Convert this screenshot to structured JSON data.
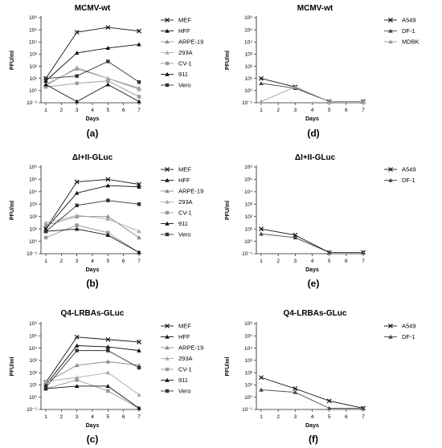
{
  "chart_data": [
    {
      "type": "line",
      "panel_label": "(a)",
      "title": "MCMV-wt",
      "xlabel": "Days",
      "ylabel": "PFU/ml",
      "x_ticks": [
        "1",
        "2",
        "3",
        "4",
        "5",
        "6",
        "7"
      ],
      "y_ticks": [
        "10⁻¹",
        "10⁰",
        "10¹",
        "10²",
        "10³",
        "10⁴",
        "10⁵",
        "10⁶"
      ],
      "ylim": [
        -1,
        6
      ],
      "legend_position": "right",
      "series": [
        {
          "name": "MEF",
          "marker": "x",
          "color": "#111111",
          "x": [
            1,
            3,
            5,
            7
          ],
          "y": [
            1.0,
            4.8,
            5.2,
            4.9
          ]
        },
        {
          "name": "HFF",
          "marker": "tri",
          "color": "#111111",
          "x": [
            1,
            3,
            5,
            7
          ],
          "y": [
            0.8,
            3.1,
            3.5,
            3.8
          ]
        },
        {
          "name": "ARPE-19",
          "marker": "tri",
          "color": "#888888",
          "x": [
            1,
            3,
            5,
            7
          ],
          "y": [
            0.5,
            1.8,
            1.0,
            0.2
          ]
        },
        {
          "name": "293A",
          "marker": "tri",
          "color": "#aaaaaa",
          "x": [
            1,
            3,
            5,
            7
          ],
          "y": [
            0.4,
            1.9,
            1.0,
            0.1
          ]
        },
        {
          "name": "CV-1",
          "marker": "sq",
          "color": "#999999",
          "x": [
            1,
            3,
            5,
            7
          ],
          "y": [
            0.3,
            0.6,
            0.8,
            -0.5
          ]
        },
        {
          "name": "911",
          "marker": "tri",
          "color": "#111111",
          "x": [
            1,
            3,
            5,
            7
          ],
          "y": [
            0.5,
            -0.9,
            0.5,
            -0.9
          ]
        },
        {
          "name": "Vero",
          "marker": "sq",
          "color": "#333333",
          "x": [
            1,
            3,
            5,
            7
          ],
          "y": [
            1.0,
            1.2,
            2.4,
            0.7
          ]
        }
      ]
    },
    {
      "type": "line",
      "panel_label": "(d)",
      "title": "MCMV-wt",
      "xlabel": "Days",
      "ylabel": "PFU/ml",
      "x_ticks": [
        "1",
        "2",
        "3",
        "4",
        "5",
        "6",
        "7"
      ],
      "y_ticks": [
        "10⁻¹",
        "10⁰",
        "10¹",
        "10²",
        "10³",
        "10⁴",
        "10⁵",
        "10⁶"
      ],
      "ylim": [
        -1,
        6
      ],
      "legend_position": "right",
      "series": [
        {
          "name": "A549",
          "marker": "x",
          "color": "#111111",
          "x": [
            1,
            3,
            5,
            7
          ],
          "y": [
            1.0,
            0.3,
            -0.9,
            -0.9
          ]
        },
        {
          "name": "DF-1",
          "marker": "tri",
          "color": "#444444",
          "x": [
            1,
            3,
            5,
            7
          ],
          "y": [
            0.6,
            0.2,
            -0.9,
            -0.9
          ]
        },
        {
          "name": "MDBK",
          "marker": "tri",
          "color": "#999999",
          "x": [
            1,
            3,
            5,
            7
          ],
          "y": [
            -0.9,
            0.3,
            -0.9,
            -0.9
          ]
        }
      ]
    },
    {
      "type": "line",
      "panel_label": "(b)",
      "title": "ΔI+II-GLuc",
      "xlabel": "Days",
      "ylabel": "PFU/ml",
      "x_ticks": [
        "1",
        "2",
        "3",
        "4",
        "5",
        "6",
        "7"
      ],
      "y_ticks": [
        "10⁻¹",
        "10⁰",
        "10¹",
        "10²",
        "10³",
        "10⁴",
        "10⁵",
        "10⁶"
      ],
      "ylim": [
        -1,
        6
      ],
      "legend_position": "right",
      "series": [
        {
          "name": "MEF",
          "marker": "x",
          "color": "#111111",
          "x": [
            1,
            3,
            5,
            7
          ],
          "y": [
            1.0,
            4.8,
            5.0,
            4.6
          ]
        },
        {
          "name": "HFF",
          "marker": "tri",
          "color": "#111111",
          "x": [
            1,
            3,
            5,
            7
          ],
          "y": [
            1.0,
            3.9,
            4.5,
            4.4
          ]
        },
        {
          "name": "ARPE-19",
          "marker": "tri",
          "color": "#888888",
          "x": [
            1,
            3,
            5,
            7
          ],
          "y": [
            1.3,
            2.0,
            2.0,
            0.3
          ]
        },
        {
          "name": "293A",
          "marker": "tri",
          "color": "#aaaaaa",
          "x": [
            1,
            3,
            5,
            7
          ],
          "y": [
            1.5,
            2.1,
            1.8,
            0.8
          ]
        },
        {
          "name": "CV-1",
          "marker": "sq",
          "color": "#999999",
          "x": [
            1,
            3,
            5,
            7
          ],
          "y": [
            0.3,
            1.3,
            0.7,
            -0.9
          ]
        },
        {
          "name": "911",
          "marker": "tri",
          "color": "#111111",
          "x": [
            1,
            3,
            5,
            7
          ],
          "y": [
            0.8,
            1.0,
            0.5,
            -0.9
          ]
        },
        {
          "name": "Vero",
          "marker": "sq",
          "color": "#333333",
          "x": [
            1,
            3,
            5,
            7
          ],
          "y": [
            0.8,
            2.9,
            3.3,
            3.0
          ]
        }
      ]
    },
    {
      "type": "line",
      "panel_label": "(e)",
      "title": "ΔI+II-GLuc",
      "xlabel": "Days",
      "ylabel": "PFU/ml",
      "x_ticks": [
        "1",
        "2",
        "3",
        "4",
        "5",
        "6",
        "7"
      ],
      "y_ticks": [
        "10⁻¹",
        "10⁰",
        "10¹",
        "10²",
        "10³",
        "10⁴",
        "10⁵",
        "10⁶"
      ],
      "ylim": [
        -1,
        6
      ],
      "legend_position": "right",
      "series": [
        {
          "name": "A549",
          "marker": "x",
          "color": "#111111",
          "x": [
            1,
            3,
            5,
            7
          ],
          "y": [
            1.0,
            0.5,
            -0.9,
            -0.9
          ]
        },
        {
          "name": "DF-1",
          "marker": "tri",
          "color": "#444444",
          "x": [
            1,
            3,
            5,
            7
          ],
          "y": [
            0.6,
            0.3,
            -0.9,
            -0.9
          ]
        }
      ]
    },
    {
      "type": "line",
      "panel_label": "(c)",
      "title": "Q4-LRBAs-GLuc",
      "xlabel": "Days",
      "ylabel": "PFU/ml",
      "x_ticks": [
        "1",
        "2",
        "3",
        "4",
        "5",
        "6",
        "7"
      ],
      "y_ticks": [
        "10⁻¹",
        "10⁰",
        "10¹",
        "10²",
        "10³",
        "10⁴",
        "10⁵",
        "10⁶"
      ],
      "ylim": [
        -1,
        6
      ],
      "legend_position": "right",
      "series": [
        {
          "name": "MEF",
          "marker": "x",
          "color": "#111111",
          "x": [
            1,
            3,
            5,
            7
          ],
          "y": [
            1.2,
            4.9,
            4.7,
            4.5
          ]
        },
        {
          "name": "HFF",
          "marker": "tri",
          "color": "#111111",
          "x": [
            1,
            3,
            5,
            7
          ],
          "y": [
            1.0,
            4.2,
            4.1,
            3.8
          ]
        },
        {
          "name": "ARPE-19",
          "marker": "tri",
          "color": "#888888",
          "x": [
            1,
            3,
            5,
            7
          ],
          "y": [
            1.2,
            2.6,
            2.9,
            2.6
          ]
        },
        {
          "name": "293A",
          "marker": "tri",
          "color": "#aaaaaa",
          "x": [
            1,
            3,
            5,
            7
          ],
          "y": [
            1.3,
            1.6,
            2.0,
            0.2
          ]
        },
        {
          "name": "CV-1",
          "marker": "sq",
          "color": "#999999",
          "x": [
            1,
            3,
            5,
            7
          ],
          "y": [
            0.7,
            1.4,
            0.5,
            -0.9
          ]
        },
        {
          "name": "911",
          "marker": "tri",
          "color": "#111111",
          "x": [
            1,
            3,
            5,
            7
          ],
          "y": [
            0.7,
            0.9,
            0.9,
            -0.9
          ]
        },
        {
          "name": "Vero",
          "marker": "sq",
          "color": "#333333",
          "x": [
            1,
            3,
            5,
            7
          ],
          "y": [
            0.8,
            3.8,
            3.8,
            2.4
          ]
        }
      ]
    },
    {
      "type": "line",
      "panel_label": "(f)",
      "title": "Q4-LRBAs-GLuc",
      "xlabel": "Days",
      "ylabel": "PFU/ml",
      "x_ticks": [
        "1",
        "2",
        "3",
        "4",
        "5",
        "6",
        "7"
      ],
      "y_ticks": [
        "10⁻¹",
        "10⁰",
        "10¹",
        "10²",
        "10³",
        "10⁴",
        "10⁵",
        "10⁶"
      ],
      "ylim": [
        -1,
        6
      ],
      "legend_position": "right",
      "series": [
        {
          "name": "A549",
          "marker": "x",
          "color": "#111111",
          "x": [
            1,
            3,
            5,
            7
          ],
          "y": [
            1.6,
            0.7,
            -0.3,
            -0.9
          ]
        },
        {
          "name": "DF-1",
          "marker": "tri",
          "color": "#444444",
          "x": [
            1,
            3,
            5,
            7
          ],
          "y": [
            0.6,
            0.4,
            -0.9,
            -0.9
          ]
        }
      ]
    }
  ]
}
